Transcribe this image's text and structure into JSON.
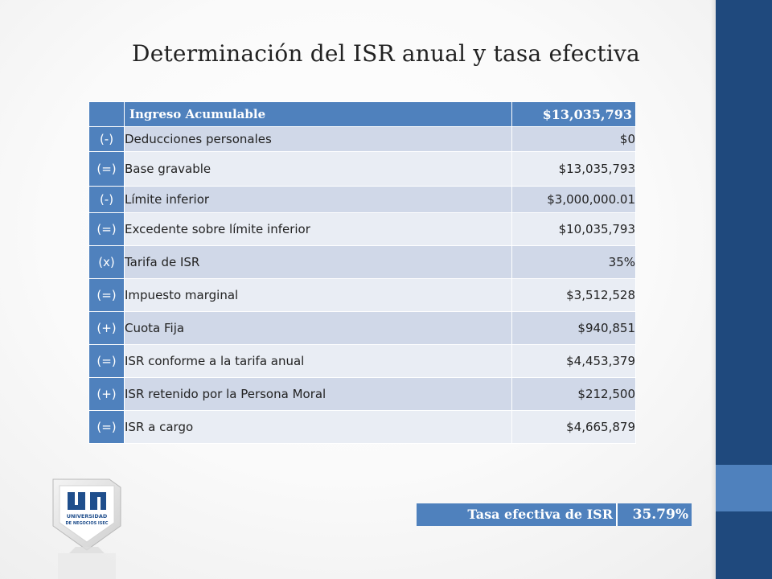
{
  "slide": {
    "title": "Determinación del ISR anual y tasa efectiva"
  },
  "table": {
    "header": {
      "operator": "",
      "label": "Ingreso Acumulable",
      "amount": "$13,035,793"
    },
    "rows": [
      {
        "operator": "(-)",
        "label": "Deducciones personales",
        "amount": "$0"
      },
      {
        "operator": "(=)",
        "label": "Base gravable",
        "amount": "$13,035,793"
      },
      {
        "operator": "(-)",
        "label": "Límite inferior",
        "amount": "$3,000,000.01"
      },
      {
        "operator": "(=)",
        "label": "Excedente sobre límite inferior",
        "amount": "$10,035,793"
      },
      {
        "operator": "(x)",
        "label": "Tarifa de ISR",
        "amount": "35%"
      },
      {
        "operator": "(=)",
        "label": "Impuesto marginal",
        "amount": "$3,512,528"
      },
      {
        "operator": "(+)",
        "label": "Cuota Fija",
        "amount": "$940,851"
      },
      {
        "operator": "(=)",
        "label": "ISR conforme a la tarifa anual",
        "amount": "$4,453,379"
      },
      {
        "operator": "(+)",
        "label": "ISR retenido por la Persona Moral",
        "amount": "$212,500"
      },
      {
        "operator": "(=)",
        "label": "ISR a cargo",
        "amount": "$4,665,879"
      }
    ]
  },
  "effective_rate": {
    "label": "Tasa efectiva de ISR",
    "value": "35.79%"
  },
  "logo": {
    "text_line1": "UNIVERSIDAD",
    "text_line2": "DE NEGOCIOS ISEC"
  },
  "colors": {
    "accent": "#4f81bd",
    "sidebar": "#1f497d",
    "row_odd": "#d0d8e8",
    "row_even": "#e9edf4"
  }
}
